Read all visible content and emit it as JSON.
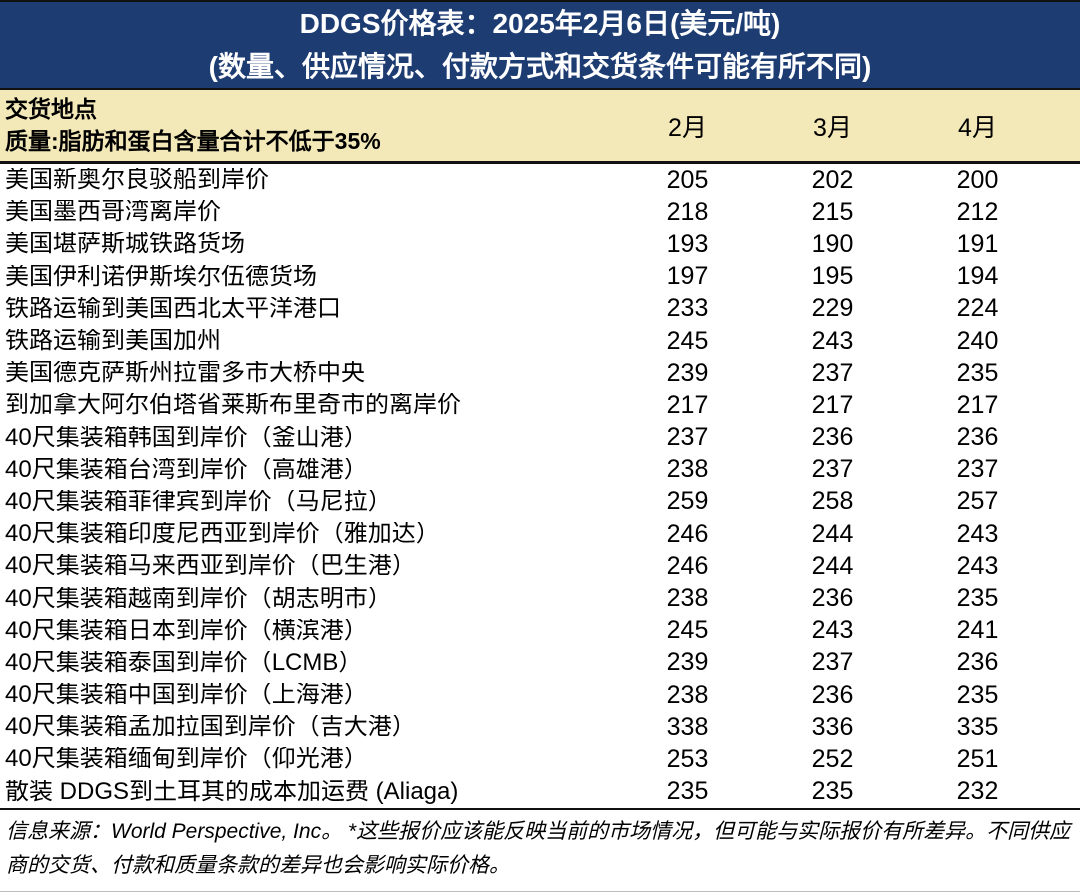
{
  "header": {
    "title": "DDGS价格表：2025年2月6日(美元/吨)",
    "subtitle": "(数量、供应情况、付款方式和交货条件可能有所不同)"
  },
  "columns": {
    "location_line1": "交货地点",
    "location_line2": "质量:脂肪和蛋白含量合计不低于35%",
    "months": [
      "2月",
      "3月",
      "4月"
    ]
  },
  "table": {
    "rows": [
      {
        "location": "美国新奥尔良驳船到岸价",
        "values": [
          205,
          202,
          200
        ]
      },
      {
        "location": "美国墨西哥湾离岸价",
        "values": [
          218,
          215,
          212
        ]
      },
      {
        "location": "美国堪萨斯城铁路货场",
        "values": [
          193,
          190,
          191
        ]
      },
      {
        "location": "美国伊利诺伊斯埃尔伍德货场",
        "values": [
          197,
          195,
          194
        ]
      },
      {
        "location": "铁路运输到美国西北太平洋港口",
        "values": [
          233,
          229,
          224
        ]
      },
      {
        "location": "铁路运输到美国加州",
        "values": [
          245,
          243,
          240
        ]
      },
      {
        "location": "美国德克萨斯州拉雷多市大桥中央",
        "values": [
          239,
          237,
          235
        ]
      },
      {
        "location": "到加拿大阿尔伯塔省莱斯布里奇市的离岸价",
        "values": [
          217,
          217,
          217
        ]
      },
      {
        "location": "40尺集装箱韩国到岸价（釜山港）",
        "values": [
          237,
          236,
          236
        ]
      },
      {
        "location": "40尺集装箱台湾到岸价（高雄港）",
        "values": [
          238,
          237,
          237
        ]
      },
      {
        "location": "40尺集装箱菲律宾到岸价（马尼拉）",
        "values": [
          259,
          258,
          257
        ]
      },
      {
        "location": "40尺集装箱印度尼西亚到岸价（雅加达）",
        "values": [
          246,
          244,
          243
        ]
      },
      {
        "location": "40尺集装箱马来西亚到岸价（巴生港）",
        "values": [
          246,
          244,
          243
        ]
      },
      {
        "location": "40尺集装箱越南到岸价（胡志明市）",
        "values": [
          238,
          236,
          235
        ]
      },
      {
        "location": "40尺集装箱日本到岸价（横滨港）",
        "values": [
          245,
          243,
          241
        ]
      },
      {
        "location": "40尺集装箱泰国到岸价（LCMB）",
        "values": [
          239,
          237,
          236
        ]
      },
      {
        "location": "40尺集装箱中国到岸价（上海港）",
        "values": [
          238,
          236,
          235
        ]
      },
      {
        "location": "40尺集装箱孟加拉国到岸价（吉大港）",
        "values": [
          338,
          336,
          335
        ]
      },
      {
        "location": "40尺集装箱缅甸到岸价（仰光港）",
        "values": [
          253,
          252,
          251
        ]
      },
      {
        "location": "散装 DDGS到土耳其的成本加运费 (Aliaga)",
        "values": [
          235,
          235,
          232
        ]
      }
    ]
  },
  "footer": {
    "note": "信息来源：World Perspective, Inc。 *这些报价应该能反映当前的市场情况，但可能与实际报价有所差异。不同供应商的交货、付款和质量条款的差异也会影响实际价格。"
  },
  "colors": {
    "header_bg": "#1d3c72",
    "subheader_bg": "#f3e8b7",
    "header_text": "#ffffff",
    "body_text": "#000000"
  }
}
